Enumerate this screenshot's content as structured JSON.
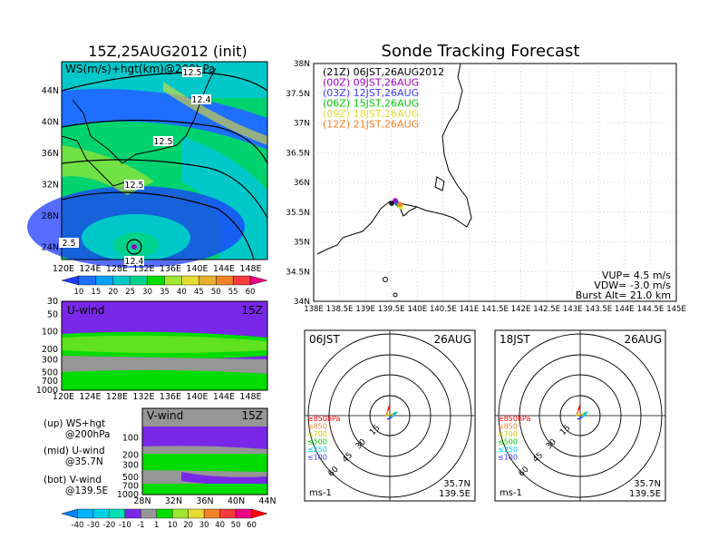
{
  "left": {
    "title": "15Z,25AUG2012 (init)",
    "map_label": "WS(m/s)+hgt(km)@200hPa",
    "contours": [
      "12.5",
      "12.4",
      "12.5",
      "12.5",
      "12.4",
      "2.5"
    ],
    "lon_ticks": [
      "120E",
      "124E",
      "128E",
      "132E",
      "136E",
      "140E",
      "144E",
      "148E"
    ],
    "lat_ticks": [
      "44N",
      "40N",
      "36N",
      "32N",
      "28N",
      "24N"
    ],
    "cb1_labels": [
      "10",
      "15",
      "20",
      "25",
      "30",
      "35",
      "40",
      "45",
      "50",
      "55",
      "60"
    ],
    "cb1_colors": [
      "#1e3cff",
      "#1e6eff",
      "#00a0ff",
      "#00c8c8",
      "#00d28c",
      "#00dc00",
      "#a0e632",
      "#e6dc32",
      "#e6af2d",
      "#f08228",
      "#fa3c3c",
      "#f00082"
    ],
    "uwind_label": "U-wind",
    "uwind_time": "15Z",
    "vwind_label": "V-wind",
    "vwind_time": "15Z",
    "p_ticks": [
      "30",
      "50",
      "100",
      "200",
      "300",
      "500",
      "700",
      "1000"
    ],
    "vlat_ticks": [
      "28N",
      "32N",
      "36N",
      "40N",
      "44N"
    ],
    "legend": [
      [
        "(up) WS+hgt",
        "@200hPa"
      ],
      [
        "(mid) U-wind",
        "@35.7N"
      ],
      [
        "(bot) V-wind",
        "@139.5E"
      ]
    ],
    "cb2_labels": [
      "-40",
      "-30",
      "-20",
      "-10",
      "-1",
      "1",
      "10",
      "20",
      "30",
      "40",
      "50",
      "60"
    ],
    "cb2_colors": [
      "#0080ff",
      "#00b4ff",
      "#00d2e6",
      "#00dcb4",
      "#7828e6",
      "#969696",
      "#00dc00",
      "#a0e632",
      "#e6dc32",
      "#f08228",
      "#fa3c3c",
      "#f00082",
      "#ff0000"
    ]
  },
  "right": {
    "title": "Sonde Tracking Forecast",
    "lat_ticks": [
      "38N",
      "37.5N",
      "37N",
      "36.5N",
      "36N",
      "35.5N",
      "35N",
      "34.5N",
      "34N"
    ],
    "lon_ticks": [
      "138E",
      "138.5E",
      "139E",
      "139.5E",
      "140E",
      "140.5E",
      "141E",
      "141.5E",
      "142E",
      "142.5E",
      "143E",
      "143.5E",
      "144E",
      "144.5E",
      "145E"
    ],
    "launch_times": [
      {
        "text": "(21Z) 06JST,26AUG2012",
        "color": "#000000"
      },
      {
        "text": "(00Z) 09JST,26AUG",
        "color": "#a000c8"
      },
      {
        "text": "(03Z) 12JST,26AUG",
        "color": "#3c3cff"
      },
      {
        "text": "(06Z) 15JST,26AUG",
        "color": "#00c800"
      },
      {
        "text": "(09Z) 18JST,26AUG",
        "color": "#e6dc32"
      },
      {
        "text": "(12Z) 21JST,26AUG",
        "color": "#f08228"
      }
    ],
    "vup": "VUP= 4.5 m/s",
    "vdw": "VDW= -3.0 m/s",
    "burst": "Burst Alt= 21.0 km"
  },
  "hodographs": [
    {
      "time": "06JST",
      "date": "26AUG",
      "ring_labels": [
        "15",
        "30",
        "45",
        "60"
      ],
      "levels": [
        "≥850hPa",
        "≤850",
        "≤700",
        "≤500",
        "≤250",
        "≤100"
      ],
      "level_colors": [
        "#ff0000",
        "#f08228",
        "#c8c800",
        "#00c800",
        "#00c8ff",
        "#3c3cff"
      ],
      "unit": "ms-1",
      "lat": "35.7N",
      "lon": "139.5E"
    },
    {
      "time": "18JST",
      "date": "26AUG",
      "ring_labels": [
        "15",
        "30",
        "45",
        "60"
      ],
      "levels": [
        "≥850hPa",
        "≤850",
        "≤700",
        "≤500",
        "≤250",
        "≤100"
      ],
      "level_colors": [
        "#ff0000",
        "#f08228",
        "#c8c800",
        "#00c800",
        "#00c8ff",
        "#3c3cff"
      ],
      "unit": "ms-1",
      "lat": "35.7N",
      "lon": "139.5E"
    }
  ]
}
